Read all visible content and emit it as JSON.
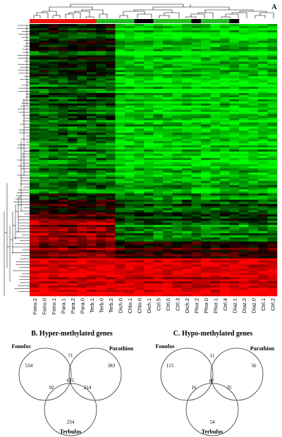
{
  "panel_label": "A",
  "heatmap": {
    "colors": {
      "high": "#ff0000",
      "low": "#00ff00",
      "mid": "#000000"
    },
    "group_bar": [
      {
        "color": "#ee1111",
        "span": 7
      },
      {
        "color": "#22bb22",
        "span": 4
      },
      {
        "color": "#000000",
        "span": 2
      },
      {
        "color": "#22bb22",
        "span": 4
      },
      {
        "color": "#000000",
        "span": 1
      },
      {
        "color": "#22bb22",
        "span": 3
      },
      {
        "color": "#000000",
        "span": 1
      }
    ],
    "samples": [
      "Fono.2",
      "Fono.0",
      "Fono.1",
      "Para.1",
      "Para.2",
      "Para.0",
      "Terb.1",
      "Terb.0",
      "Terb.2",
      "Dich.0",
      "Chlo.1",
      "Chlo.0",
      "Dich.1",
      "Ctrl.5",
      "Ctrl.0",
      "Ctrl.3",
      "Dich.2",
      "Phor.2",
      "Phor.0",
      "Phor.1",
      "Ctrl.4",
      "Diaz.1",
      "Diaz.2",
      "Diaz.0",
      "Ctrl.1",
      "Ctrl.2"
    ]
  },
  "venn_hyper": {
    "title": "B. Hyper-methylated genes",
    "labels": {
      "a": "Fonofos",
      "b": "Parathion",
      "c": "Terbufos"
    },
    "regions": {
      "a_only": "534",
      "b_only": "383",
      "c_only": "234",
      "ab": "71",
      "ac": "92",
      "bc": "214",
      "abc": "625"
    }
  },
  "venn_hypo": {
    "title": "C. Hypo-methylated genes",
    "labels": {
      "a": "Fonofos",
      "b": "Parathion",
      "c": "Terbufos"
    },
    "regions": {
      "a_only": "115",
      "b_only": "56",
      "c_only": "54",
      "ab": "11",
      "ac": "16",
      "bc": "35",
      "abc": "87"
    }
  }
}
